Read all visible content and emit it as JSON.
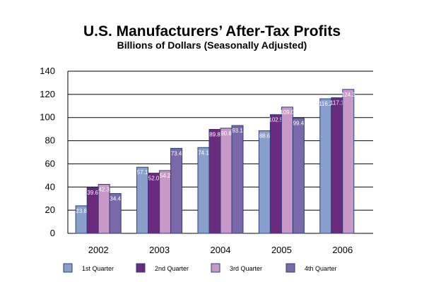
{
  "chart_data": {
    "type": "bar",
    "title": "U.S. Manufacturers’ After-Tax Profits",
    "subtitle": "Billions of Dollars (Seasonally Adjusted)",
    "categories": [
      "2002",
      "2003",
      "2004",
      "2005",
      "2006"
    ],
    "series": [
      {
        "name": "1st Quarter",
        "color": "#8aa0cc",
        "values": [
          23.8,
          57.1,
          74.1,
          88.6,
          116.2
        ]
      },
      {
        "name": "2nd Quarter",
        "color": "#6a2a7e",
        "values": [
          39.6,
          52.0,
          89.8,
          102.5,
          117.1
        ]
      },
      {
        "name": "3rd Quarter",
        "color": "#c898c6",
        "values": [
          42.3,
          54.2,
          90.8,
          109.0,
          124.3
        ]
      },
      {
        "name": "4th Quarter",
        "color": "#7b68a8",
        "values": [
          34.4,
          73.4,
          93.1,
          99.4,
          null
        ]
      }
    ],
    "ylim": [
      0,
      140
    ],
    "yticks": [
      0,
      20,
      40,
      60,
      80,
      100,
      120,
      140
    ],
    "grid": true,
    "legend": "bottom",
    "xlabel": "",
    "ylabel": ""
  }
}
